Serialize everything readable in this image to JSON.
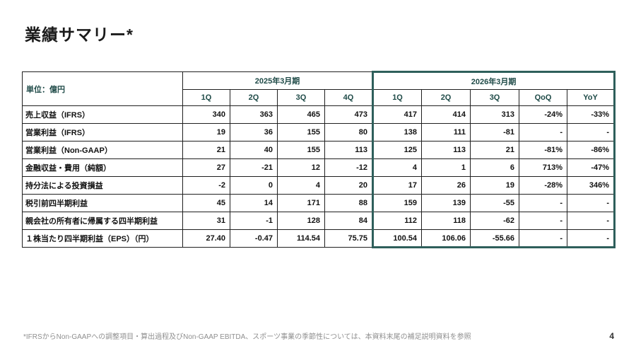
{
  "page": {
    "title": "業績サマリー*",
    "footnote": "*IFRSからNon-GAAPへの調整項目・算出過程及びNon-GAAP EBITDA、スポーツ事業の季節性については、本資料末尾の補足説明資料を参照",
    "page_number": "4"
  },
  "colors": {
    "highlight_border": "#2e5f5b",
    "header_text": "#1e4a47",
    "body_text": "#111111",
    "footnote_text": "#8f8f8f"
  },
  "table": {
    "unit_label": "単位：億円",
    "groups": [
      {
        "label": "2025年3月期",
        "columns": [
          "1Q",
          "2Q",
          "3Q",
          "4Q"
        ],
        "highlighted": false
      },
      {
        "label": "2026年3月期",
        "columns": [
          "1Q",
          "2Q",
          "3Q",
          "QoQ",
          "YoY"
        ],
        "highlighted": true
      }
    ],
    "rows": [
      {
        "label": "売上収益（IFRS）",
        "values": [
          "340",
          "363",
          "465",
          "473",
          "417",
          "414",
          "313",
          "-24%",
          "-33%"
        ]
      },
      {
        "label": "営業利益（IFRS）",
        "values": [
          "19",
          "36",
          "155",
          "80",
          "138",
          "111",
          "-81",
          "-",
          "-"
        ]
      },
      {
        "label": "営業利益（Non-GAAP）",
        "values": [
          "21",
          "40",
          "155",
          "113",
          "125",
          "113",
          "21",
          "-81%",
          "-86%"
        ]
      },
      {
        "label": "金融収益・費用（純額）",
        "values": [
          "27",
          "-21",
          "12",
          "-12",
          "4",
          "1",
          "6",
          "713%",
          "-47%"
        ]
      },
      {
        "label": "持分法による投資損益",
        "values": [
          "-2",
          "0",
          "4",
          "20",
          "17",
          "26",
          "19",
          "-28%",
          "346%"
        ]
      },
      {
        "label": "税引前四半期利益",
        "values": [
          "45",
          "14",
          "171",
          "88",
          "159",
          "139",
          "-55",
          "-",
          "-"
        ]
      },
      {
        "label": "親会社の所有者に帰属する四半期利益",
        "values": [
          "31",
          "-1",
          "128",
          "84",
          "112",
          "118",
          "-62",
          "-",
          "-"
        ]
      },
      {
        "label": "１株当たり四半期利益（EPS）（円）",
        "values": [
          "27.40",
          "-0.47",
          "114.54",
          "75.75",
          "100.54",
          "106.06",
          "-55.66",
          "-",
          "-"
        ]
      }
    ]
  }
}
